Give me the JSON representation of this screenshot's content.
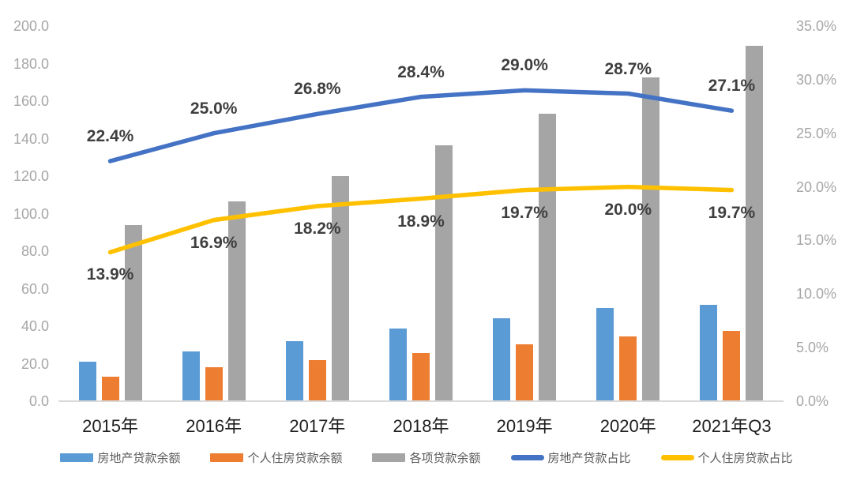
{
  "chart_data": {
    "type": "combo-bar-line",
    "title": "",
    "categories": [
      "2015年",
      "2016年",
      "2017年",
      "2018年",
      "2019年",
      "2020年",
      "2021年Q3"
    ],
    "bar_series": [
      {
        "name": "房地产贷款余额",
        "color": "#5B9BD5",
        "axis": "left",
        "values": [
          21.0,
          26.7,
          32.2,
          38.7,
          44.4,
          49.6,
          51.4
        ]
      },
      {
        "name": "个人住房贷款余额",
        "color": "#ED7D31",
        "axis": "left",
        "values": [
          13.0,
          17.9,
          21.9,
          25.8,
          30.2,
          34.4,
          37.4
        ]
      },
      {
        "name": "各项贷款余额",
        "color": "#A5A5A5",
        "axis": "left",
        "values": [
          94.0,
          106.6,
          120.1,
          136.3,
          153.1,
          172.7,
          189.5
        ]
      }
    ],
    "line_series": [
      {
        "name": "房地产贷款占比",
        "color": "#4472C4",
        "axis": "right",
        "values": [
          22.4,
          25.0,
          26.8,
          28.4,
          29.0,
          28.7,
          27.1
        ],
        "labels": [
          "22.4%",
          "25.0%",
          "26.8%",
          "28.4%",
          "29.0%",
          "28.7%",
          "27.1%"
        ],
        "label_position": "above"
      },
      {
        "name": "个人住房贷款占比",
        "color": "#FFC000",
        "axis": "right",
        "values": [
          13.9,
          16.9,
          18.2,
          18.9,
          19.7,
          20.0,
          19.7
        ],
        "labels": [
          "13.9%",
          "16.9%",
          "18.2%",
          "18.9%",
          "19.7%",
          "20.0%",
          "19.7%"
        ],
        "label_position": "below"
      }
    ],
    "left_axis": {
      "min": 0,
      "max": 200,
      "step": 20,
      "tick_labels": [
        "0.0",
        "20.0",
        "40.0",
        "60.0",
        "80.0",
        "100.0",
        "120.0",
        "140.0",
        "160.0",
        "180.0",
        "200.0"
      ]
    },
    "right_axis": {
      "min": 0,
      "max": 35,
      "step": 5,
      "tick_labels": [
        "0.0%",
        "5.0%",
        "10.0%",
        "15.0%",
        "20.0%",
        "25.0%",
        "30.0%",
        "35.0%"
      ]
    },
    "grid": false,
    "legend_position": "bottom"
  },
  "style": {
    "tick_color": "#A6A6A6",
    "x_label_color": "#1F1F1F",
    "data_label_color": "#3F3F3F",
    "legend_text_color": "#595959",
    "axis_line_color": "#D9D9D9",
    "background": "#FFFFFF"
  }
}
